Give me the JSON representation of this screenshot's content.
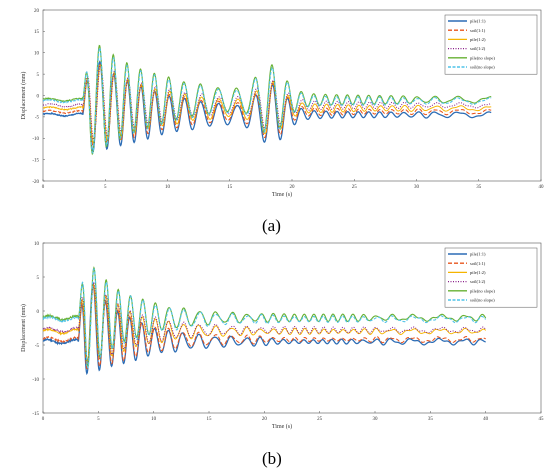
{
  "captions": {
    "a": "(a)",
    "b": "(b)"
  },
  "colors": {
    "pile11": "#2b6cb5",
    "soil11": "#e8541c",
    "pile12": "#f5b400",
    "soil12": "#8a1f8a",
    "pileno": "#66b032",
    "soilno": "#4fc3e8",
    "axis": "#555555"
  },
  "chart_data": [
    {
      "id": "a",
      "type": "line",
      "xlabel": "Time (s)",
      "ylabel": "Displacement (mm)",
      "xlim": [
        0,
        40
      ],
      "ylim": [
        -20,
        20
      ],
      "xticks": [
        0,
        5,
        10,
        15,
        20,
        25,
        30,
        35,
        40
      ],
      "yticks": [
        -20,
        -15,
        -10,
        -5,
        0,
        5,
        10,
        15,
        20
      ],
      "legend_position": "top-right",
      "duration": 36,
      "series": [
        {
          "name": "pile(1:1)",
          "color": "#2b6cb5",
          "dash": "",
          "width": 1.6,
          "offset": -4.5,
          "amp": 12.5,
          "seed": 1
        },
        {
          "name": "soil(1:1)",
          "color": "#e8541c",
          "dash": "4,2",
          "width": 1.3,
          "offset": -3.8,
          "amp": 11.5,
          "seed": 2
        },
        {
          "name": "pile(1:2)",
          "color": "#f5b400",
          "dash": "",
          "width": 1.2,
          "offset": -3.0,
          "amp": 11.0,
          "seed": 3
        },
        {
          "name": "soil(1:2)",
          "color": "#8a1f8a",
          "dash": "1,1.5",
          "width": 1.3,
          "offset": -2.3,
          "amp": 10.5,
          "seed": 4
        },
        {
          "name": "pile(no slope)",
          "color": "#66b032",
          "dash": "",
          "width": 1.4,
          "offset": -1.0,
          "amp": 14.5,
          "seed": 5
        },
        {
          "name": "soil(no slope)",
          "color": "#4fc3e8",
          "dash": "3,1.5",
          "width": 1.4,
          "offset": -1.3,
          "amp": 14.0,
          "seed": 6
        }
      ]
    },
    {
      "id": "b",
      "type": "line",
      "xlabel": "Time (s)",
      "ylabel": "Displacement (mm)",
      "xlim": [
        0,
        45
      ],
      "ylim": [
        -15,
        10
      ],
      "xticks": [
        0,
        5,
        10,
        15,
        20,
        25,
        30,
        35,
        40,
        45
      ],
      "yticks": [
        -15,
        -10,
        -5,
        0,
        5,
        10
      ],
      "legend_position": "top-right",
      "duration": 40,
      "series": [
        {
          "name": "pile(1:1)",
          "color": "#2b6cb5",
          "dash": "",
          "width": 1.6,
          "offset": -4.5,
          "amp": 8.5,
          "seed": 11
        },
        {
          "name": "soil(1:1)",
          "color": "#e8541c",
          "dash": "4,2",
          "width": 1.3,
          "offset": -4.2,
          "amp": 8.0,
          "seed": 12
        },
        {
          "name": "pile(1:2)",
          "color": "#f5b400",
          "dash": "",
          "width": 1.2,
          "offset": -3.0,
          "amp": 7.5,
          "seed": 13
        },
        {
          "name": "soil(1:2)",
          "color": "#8a1f8a",
          "dash": "1,1.5",
          "width": 1.3,
          "offset": -2.8,
          "amp": 7.5,
          "seed": 14
        },
        {
          "name": "pile(no slope)",
          "color": "#66b032",
          "dash": "",
          "width": 1.4,
          "offset": -1.0,
          "amp": 9.0,
          "seed": 15
        },
        {
          "name": "soil(no slope)",
          "color": "#4fc3e8",
          "dash": "3,1.5",
          "width": 1.4,
          "offset": -1.2,
          "amp": 9.0,
          "seed": 16
        }
      ]
    }
  ]
}
